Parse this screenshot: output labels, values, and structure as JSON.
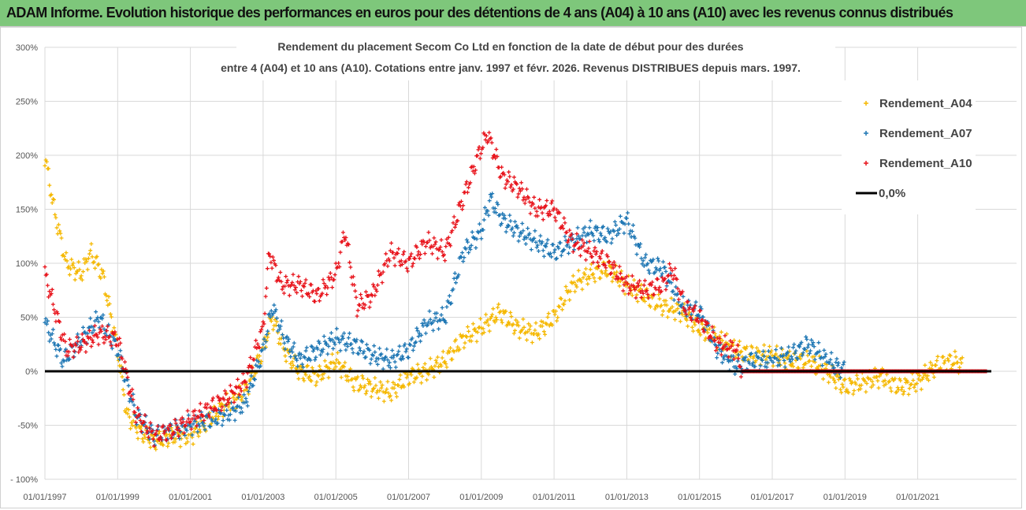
{
  "header": {
    "title": "ADAM Informe. Evolution historique des performances en euros pour des détentions de 4 ans (A04) à 10 ans (A10) avec les revenus connus distribués"
  },
  "chart_data": {
    "type": "scatter",
    "title_line1": "Rendement du placement Secom Co Ltd en fonction de la date de début pour des durées",
    "title_line2": "entre 4 (A04) et 10 ans (A10). Cotations entre janv. 1997 et févr. 2026. Revenus DISTRIBUES depuis mars. 1997.",
    "x_ticks": [
      "01/01/1997",
      "01/01/1999",
      "01/01/2001",
      "01/01/2003",
      "01/01/2005",
      "01/01/2007",
      "01/01/2009",
      "01/01/2011",
      "01/01/2013",
      "01/01/2015",
      "01/01/2017",
      "01/01/2019",
      "01/01/2021"
    ],
    "y_ticks": [
      "300%",
      "250%",
      "200%",
      "150%",
      "100%",
      "50%",
      "0%",
      "-50%",
      "- 100%"
    ],
    "xlim": [
      "1997-01",
      "2022-12"
    ],
    "ylim": [
      -100,
      300
    ],
    "grid": true,
    "legend_position": "right",
    "series": [
      {
        "name": "Rendement_A04",
        "color": "#f5b800",
        "points": [
          [
            "1997-01",
            200
          ],
          [
            "1997-04",
            150
          ],
          [
            "1997-08",
            100
          ],
          [
            "1998-01",
            90
          ],
          [
            "1998-04",
            110
          ],
          [
            "1998-08",
            90
          ],
          [
            "1999-01",
            20
          ],
          [
            "1999-04",
            -40
          ],
          [
            "1999-08",
            -55
          ],
          [
            "2000-01",
            -65
          ],
          [
            "2000-07",
            -60
          ],
          [
            "2001-01",
            -60
          ],
          [
            "2001-07",
            -45
          ],
          [
            "2002-01",
            -30
          ],
          [
            "2002-07",
            -20
          ],
          [
            "2003-01",
            20
          ],
          [
            "2003-04",
            50
          ],
          [
            "2003-08",
            20
          ],
          [
            "2004-01",
            0
          ],
          [
            "2004-07",
            -5
          ],
          [
            "2005-01",
            10
          ],
          [
            "2005-07",
            -10
          ],
          [
            "2006-01",
            -15
          ],
          [
            "2006-07",
            -20
          ],
          [
            "2007-01",
            -5
          ],
          [
            "2007-07",
            0
          ],
          [
            "2008-01",
            10
          ],
          [
            "2008-07",
            30
          ],
          [
            "2009-01",
            40
          ],
          [
            "2009-07",
            55
          ],
          [
            "2010-01",
            40
          ],
          [
            "2010-07",
            35
          ],
          [
            "2011-01",
            50
          ],
          [
            "2011-07",
            80
          ],
          [
            "2012-01",
            90
          ],
          [
            "2012-07",
            95
          ],
          [
            "2013-01",
            80
          ],
          [
            "2013-07",
            70
          ],
          [
            "2014-01",
            60
          ],
          [
            "2014-07",
            55
          ],
          [
            "2015-01",
            40
          ],
          [
            "2015-07",
            30
          ],
          [
            "2016-01",
            20
          ],
          [
            "2016-07",
            15
          ],
          [
            "2017-01",
            15
          ],
          [
            "2017-07",
            10
          ],
          [
            "2018-01",
            10
          ],
          [
            "2018-07",
            0
          ],
          [
            "2019-01",
            -15
          ],
          [
            "2019-07",
            -10
          ],
          [
            "2020-01",
            -5
          ],
          [
            "2020-07",
            -15
          ],
          [
            "2021-01",
            -10
          ],
          [
            "2021-07",
            5
          ],
          [
            "2022-01",
            10
          ],
          [
            "2022-04",
            5
          ]
        ]
      },
      {
        "name": "Rendement_A07",
        "color": "#1f77b4",
        "points": [
          [
            "1997-01",
            45
          ],
          [
            "1997-07",
            10
          ],
          [
            "1998-01",
            30
          ],
          [
            "1998-07",
            50
          ],
          [
            "1999-01",
            20
          ],
          [
            "1999-07",
            -40
          ],
          [
            "2000-01",
            -60
          ],
          [
            "2000-07",
            -55
          ],
          [
            "2001-01",
            -50
          ],
          [
            "2001-07",
            -45
          ],
          [
            "2002-01",
            -40
          ],
          [
            "2002-07",
            -30
          ],
          [
            "2003-01",
            20
          ],
          [
            "2003-04",
            60
          ],
          [
            "2003-08",
            30
          ],
          [
            "2004-01",
            10
          ],
          [
            "2004-07",
            20
          ],
          [
            "2005-01",
            30
          ],
          [
            "2005-07",
            25
          ],
          [
            "2006-01",
            15
          ],
          [
            "2006-07",
            10
          ],
          [
            "2007-01",
            20
          ],
          [
            "2007-07",
            45
          ],
          [
            "2008-01",
            50
          ],
          [
            "2008-07",
            110
          ],
          [
            "2009-01",
            130
          ],
          [
            "2009-04",
            160
          ],
          [
            "2009-08",
            140
          ],
          [
            "2010-01",
            130
          ],
          [
            "2010-07",
            120
          ],
          [
            "2011-01",
            110
          ],
          [
            "2011-07",
            120
          ],
          [
            "2012-01",
            130
          ],
          [
            "2012-07",
            125
          ],
          [
            "2013-01",
            140
          ],
          [
            "2013-07",
            100
          ],
          [
            "2014-01",
            95
          ],
          [
            "2014-07",
            60
          ],
          [
            "2015-01",
            55
          ],
          [
            "2015-07",
            20
          ],
          [
            "2016-01",
            5
          ],
          [
            "2016-07",
            10
          ],
          [
            "2017-01",
            10
          ],
          [
            "2017-07",
            15
          ],
          [
            "2018-01",
            25
          ],
          [
            "2018-07",
            10
          ],
          [
            "2019-01",
            0
          ]
        ]
      },
      {
        "name": "Rendement_A10",
        "color": "#e8141c",
        "points": [
          [
            "1997-01",
            90
          ],
          [
            "1997-04",
            60
          ],
          [
            "1997-08",
            20
          ],
          [
            "1998-01",
            25
          ],
          [
            "1998-07",
            35
          ],
          [
            "1999-01",
            30
          ],
          [
            "1999-07",
            -40
          ],
          [
            "2000-01",
            -60
          ],
          [
            "2000-07",
            -55
          ],
          [
            "2001-01",
            -45
          ],
          [
            "2001-07",
            -35
          ],
          [
            "2002-01",
            -25
          ],
          [
            "2002-07",
            -10
          ],
          [
            "2003-01",
            40
          ],
          [
            "2003-03",
            110
          ],
          [
            "2003-07",
            80
          ],
          [
            "2004-01",
            80
          ],
          [
            "2004-07",
            70
          ],
          [
            "2005-01",
            90
          ],
          [
            "2005-04",
            130
          ],
          [
            "2005-08",
            60
          ],
          [
            "2006-01",
            70
          ],
          [
            "2006-07",
            110
          ],
          [
            "2007-01",
            100
          ],
          [
            "2007-07",
            120
          ],
          [
            "2008-01",
            110
          ],
          [
            "2008-07",
            160
          ],
          [
            "2008-12",
            200
          ],
          [
            "2009-03",
            220
          ],
          [
            "2009-08",
            180
          ],
          [
            "2010-01",
            170
          ],
          [
            "2010-07",
            150
          ],
          [
            "2011-01",
            150
          ],
          [
            "2011-07",
            120
          ],
          [
            "2012-01",
            110
          ],
          [
            "2012-07",
            100
          ],
          [
            "2013-01",
            80
          ],
          [
            "2013-07",
            75
          ],
          [
            "2014-01",
            80
          ],
          [
            "2014-04",
            95
          ],
          [
            "2014-08",
            60
          ],
          [
            "2015-01",
            50
          ],
          [
            "2015-07",
            25
          ],
          [
            "2016-01",
            20
          ],
          [
            "2016-03",
            0
          ],
          [
            "2022-12",
            0
          ]
        ]
      }
    ],
    "reference_line": {
      "name": "0,0%",
      "value": 0,
      "color": "#000000"
    }
  }
}
